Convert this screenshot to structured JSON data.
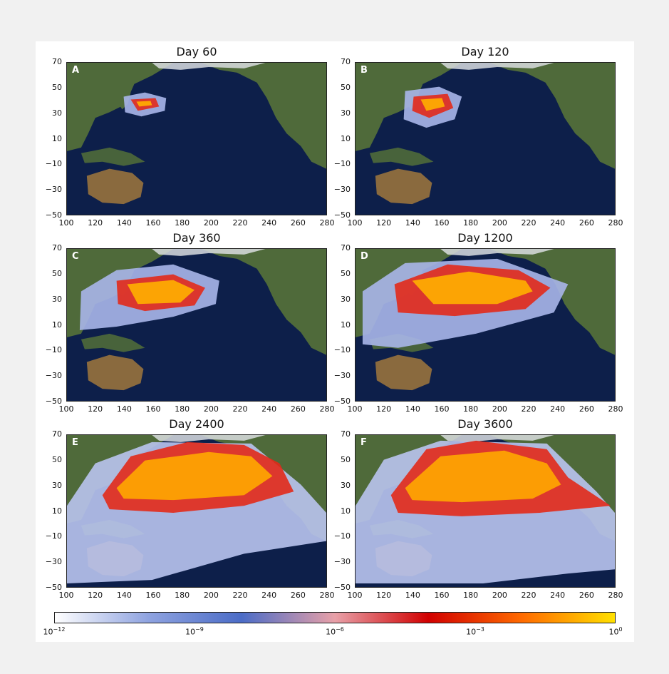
{
  "panels": [
    {
      "letter": "A",
      "title": "Day 60",
      "stage": 0
    },
    {
      "letter": "B",
      "title": "Day 120",
      "stage": 1
    },
    {
      "letter": "C",
      "title": "Day 360",
      "stage": 2
    },
    {
      "letter": "D",
      "title": "Day 1200",
      "stage": 3
    },
    {
      "letter": "E",
      "title": "Day 2400",
      "stage": 4
    },
    {
      "letter": "F",
      "title": "Day 3600",
      "stage": 5
    }
  ],
  "axes": {
    "x_ticks": [
      "100",
      "120",
      "140",
      "160",
      "180",
      "200",
      "220",
      "240",
      "260",
      "280"
    ],
    "y_ticks": [
      "70",
      "50",
      "30",
      "10",
      "−10",
      "−30",
      "−50"
    ],
    "xlim": [
      100,
      280
    ],
    "ylim": [
      -50,
      70
    ]
  },
  "colorbar": {
    "labels": [
      {
        "base": "10",
        "exp": "−12"
      },
      {
        "base": "10",
        "exp": "−9"
      },
      {
        "base": "10",
        "exp": "−6"
      },
      {
        "base": "10",
        "exp": "−3"
      },
      {
        "base": "10",
        "exp": "0"
      }
    ],
    "colors": [
      "#ffffff",
      "#8fa3e0",
      "#4b6cc7",
      "#e8a0a8",
      "#d10000",
      "#ff6a00",
      "#ffe000"
    ]
  },
  "palette": {
    "ocean": "#0d1f4a",
    "land": "#4f6a3a",
    "desert": "#8a6a3e",
    "ice": "#d9dde0"
  }
}
